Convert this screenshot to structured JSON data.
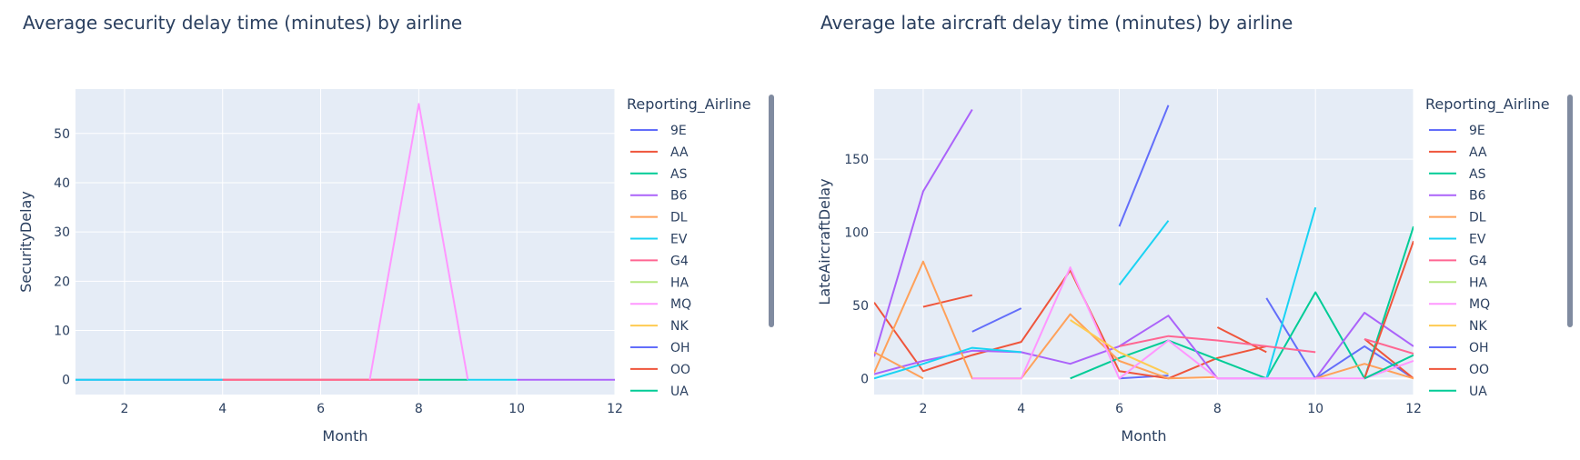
{
  "chart_data": [
    {
      "type": "line",
      "title": "Average security delay time (minutes) by airline",
      "xlabel": "Month",
      "ylabel": "SecurityDelay",
      "xlim": [
        1,
        12
      ],
      "ylim": [
        -3,
        59
      ],
      "xticks": [
        2,
        4,
        6,
        8,
        10,
        12
      ],
      "yticks": [
        0,
        10,
        20,
        30,
        40,
        50
      ],
      "grid": true,
      "legend_title": "Reporting_Airline",
      "legend_position": "right",
      "series": [
        {
          "name": "9E",
          "color": "#636efa",
          "x": [
            1,
            2,
            3,
            4
          ],
          "y": [
            0,
            0,
            0,
            0
          ]
        },
        {
          "name": "AA",
          "color": "#EF553B",
          "x": [
            4,
            5,
            6,
            7,
            8
          ],
          "y": [
            0,
            0,
            0,
            0,
            0
          ]
        },
        {
          "name": "AS",
          "color": "#00cc96",
          "x": [
            8,
            9
          ],
          "y": [
            0,
            0
          ]
        },
        {
          "name": "B6",
          "color": "#ab63fa",
          "x": [
            10,
            11,
            12
          ],
          "y": [
            0,
            0,
            0
          ]
        },
        {
          "name": "DL",
          "color": "#FFA15A",
          "x": [],
          "y": []
        },
        {
          "name": "EV",
          "color": "#19d3f3",
          "x": [
            1,
            2,
            3,
            4
          ],
          "y": [
            0,
            0,
            0,
            0
          ]
        },
        {
          "name": "G4",
          "color": "#FF6692",
          "x": [
            4,
            5,
            6,
            7,
            8
          ],
          "y": [
            0,
            0,
            0,
            0,
            0
          ]
        },
        {
          "name": "HA",
          "color": "#B6E880",
          "x": [],
          "y": []
        },
        {
          "name": "MQ",
          "color": "#FF97FF",
          "x": [
            7,
            8,
            9
          ],
          "y": [
            0,
            56,
            0
          ]
        },
        {
          "name": "NK",
          "color": "#FECB52",
          "x": [],
          "y": []
        },
        {
          "name": "OH",
          "color": "#636efa",
          "x": [],
          "y": []
        },
        {
          "name": "OO",
          "color": "#EF553B",
          "x": [],
          "y": []
        },
        {
          "name": "UA",
          "color": "#00cc96",
          "x": [],
          "y": []
        },
        {
          "name": "EV",
          "color": "#19d3f3",
          "x": [
            9,
            10
          ],
          "y": [
            0,
            0
          ]
        }
      ]
    },
    {
      "type": "line",
      "title": "Average late aircraft delay time (minutes) by airline",
      "xlabel": "Month",
      "ylabel": "LateAircraftDelay",
      "xlim": [
        1,
        12
      ],
      "ylim": [
        -11,
        198
      ],
      "xticks": [
        2,
        4,
        6,
        8,
        10,
        12
      ],
      "yticks": [
        0,
        50,
        100,
        150
      ],
      "grid": true,
      "legend_title": "Reporting_Airline",
      "legend_position": "right",
      "series": [
        {
          "name": "9E",
          "color": "#636efa",
          "segments": [
            [
              [
                3,
                32
              ],
              [
                4,
                48
              ]
            ],
            [
              [
                6,
                104
              ],
              [
                7,
                187
              ]
            ],
            [
              [
                9,
                55
              ],
              [
                10,
                0
              ],
              [
                11,
                22
              ],
              [
                12,
                0
              ]
            ],
            [
              [
                6,
                0
              ],
              [
                7,
                2
              ]
            ]
          ]
        },
        {
          "name": "AA",
          "color": "#EF553B",
          "segments": [
            [
              [
                1,
                52
              ],
              [
                2,
                5
              ],
              [
                3,
                16
              ],
              [
                4,
                25
              ],
              [
                5,
                74
              ],
              [
                6,
                5
              ],
              [
                7,
                0
              ],
              [
                8,
                14
              ],
              [
                9,
                22
              ]
            ],
            [
              [
                2,
                49
              ],
              [
                3,
                57
              ]
            ],
            [
              [
                8,
                35
              ],
              [
                9,
                18
              ]
            ],
            [
              [
                11,
                27
              ],
              [
                12,
                0
              ]
            ]
          ]
        },
        {
          "name": "AS",
          "color": "#00cc96",
          "segments": [
            [
              [
                5,
                0
              ],
              [
                6,
                14
              ],
              [
                7,
                26
              ],
              [
                8,
                13
              ],
              [
                9,
                0
              ],
              [
                10,
                59
              ],
              [
                11,
                0
              ],
              [
                12,
                104
              ]
            ]
          ]
        },
        {
          "name": "B6",
          "color": "#ab63fa",
          "segments": [
            [
              [
                1,
                15
              ],
              [
                2,
                128
              ],
              [
                3,
                184
              ]
            ],
            [
              [
                1,
                3
              ],
              [
                2,
                12
              ],
              [
                3,
                19
              ],
              [
                4,
                18
              ],
              [
                5,
                10
              ],
              [
                6,
                22
              ],
              [
                7,
                43
              ],
              [
                8,
                0
              ],
              [
                9,
                0
              ],
              [
                10,
                0
              ],
              [
                11,
                45
              ],
              [
                12,
                22
              ]
            ]
          ]
        },
        {
          "name": "DL",
          "color": "#FFA15A",
          "segments": [
            [
              [
                1,
                18
              ],
              [
                2,
                0
              ]
            ],
            [
              [
                1,
                4
              ],
              [
                2,
                80
              ],
              [
                3,
                0
              ],
              [
                4,
                0
              ],
              [
                5,
                44
              ],
              [
                6,
                12
              ],
              [
                7,
                0
              ],
              [
                8,
                1
              ]
            ],
            [
              [
                10,
                0
              ],
              [
                11,
                10
              ],
              [
                12,
                0
              ]
            ]
          ]
        },
        {
          "name": "EV",
          "color": "#19d3f3",
          "segments": [
            [
              [
                1,
                0
              ],
              [
                2,
                10
              ],
              [
                3,
                21
              ],
              [
                4,
                18
              ]
            ],
            [
              [
                6,
                64
              ],
              [
                7,
                108
              ]
            ],
            [
              [
                9,
                0
              ],
              [
                10,
                117
              ]
            ]
          ]
        },
        {
          "name": "G4",
          "color": "#FF6692",
          "segments": [
            [
              [
                6,
                22
              ],
              [
                7,
                29
              ],
              [
                8,
                26
              ],
              [
                9,
                22
              ],
              [
                10,
                18
              ]
            ],
            [
              [
                11,
                27
              ],
              [
                12,
                17
              ]
            ]
          ]
        },
        {
          "name": "HA",
          "color": "#B6E880",
          "segments": []
        },
        {
          "name": "MQ",
          "color": "#FF97FF",
          "segments": [
            [
              [
                3,
                0
              ],
              [
                4,
                0
              ],
              [
                5,
                76
              ],
              [
                6,
                0
              ],
              [
                7,
                26
              ],
              [
                8,
                0
              ],
              [
                9,
                0
              ],
              [
                10,
                0
              ],
              [
                11,
                0
              ],
              [
                12,
                12
              ]
            ]
          ]
        },
        {
          "name": "NK",
          "color": "#FECB52",
          "segments": [
            [
              [
                5,
                40
              ],
              [
                6,
                18
              ],
              [
                7,
                3
              ]
            ]
          ]
        },
        {
          "name": "OH",
          "color": "#636efa",
          "segments": []
        },
        {
          "name": "OO",
          "color": "#EF553B",
          "segments": [
            [
              [
                11,
                0
              ],
              [
                12,
                94
              ]
            ]
          ]
        },
        {
          "name": "UA",
          "color": "#00cc96",
          "segments": [
            [
              [
                11,
                0
              ],
              [
                12,
                16
              ]
            ]
          ]
        }
      ]
    }
  ]
}
